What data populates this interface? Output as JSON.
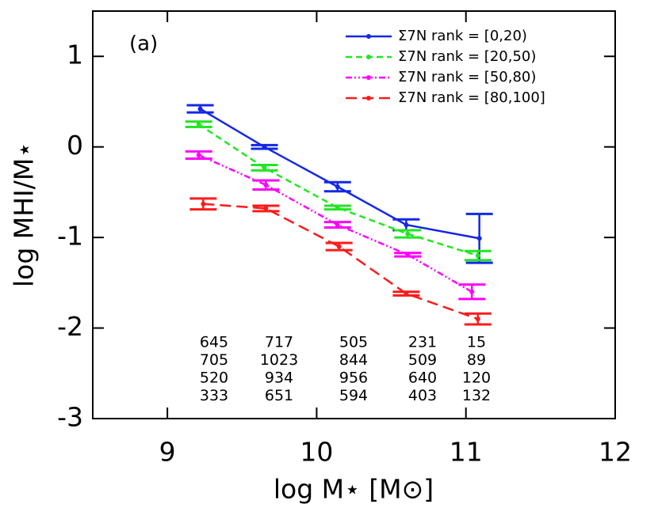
{
  "chart_data": {
    "type": "line",
    "panel_label": "(a)",
    "xlabel": "log M⋆ [M⊙]",
    "ylabel": "log MHI/M⋆",
    "xlim": [
      8.5,
      12
    ],
    "ylim": [
      -3,
      1.5
    ],
    "xticks": [
      9,
      10,
      11,
      12
    ],
    "yticks": [
      -3,
      -2,
      -1,
      0,
      1
    ],
    "legend": "upper right",
    "series": [
      {
        "name": "Σ7N rank = [0,20)",
        "color": "#1428e6",
        "linestyle": "solid",
        "x": [
          9.22,
          9.65,
          10.14,
          10.6,
          11.09
        ],
        "values": [
          0.42,
          0.0,
          -0.44,
          -0.86,
          -1.01
        ],
        "errors": [
          0.04,
          0.02,
          0.05,
          0.06,
          0.27
        ],
        "counts": [
          645,
          717,
          505,
          231,
          15
        ]
      },
      {
        "name": "Σ7N rank = [20,50)",
        "color": "#22e622",
        "linestyle": "dashed",
        "x": [
          9.21,
          9.65,
          10.14,
          10.61,
          11.08
        ],
        "values": [
          0.25,
          -0.23,
          -0.67,
          -0.96,
          -1.2
        ],
        "errors": [
          0.03,
          0.03,
          0.02,
          0.04,
          0.05
        ],
        "counts": [
          705,
          1023,
          844,
          509,
          89
        ]
      },
      {
        "name": "Σ7N rank = [50,80)",
        "color": "#ff00ff",
        "linestyle": "dashdotdot",
        "x": [
          9.21,
          9.66,
          10.14,
          10.61,
          11.04
        ],
        "values": [
          -0.09,
          -0.42,
          -0.86,
          -1.19,
          -1.6
        ],
        "errors": [
          0.04,
          0.05,
          0.03,
          0.02,
          0.08
        ],
        "counts": [
          520,
          934,
          956,
          640,
          120
        ]
      },
      {
        "name": "Σ7N rank = [80,100]",
        "color": "#ff1a1a",
        "linestyle": "longdash",
        "x": [
          9.24,
          9.66,
          10.15,
          10.6,
          11.08
        ],
        "values": [
          -0.63,
          -0.68,
          -1.1,
          -1.62,
          -1.9
        ],
        "errors": [
          0.06,
          0.03,
          0.04,
          0.02,
          0.06
        ],
        "counts": [
          333,
          651,
          594,
          403,
          132
        ]
      }
    ]
  }
}
